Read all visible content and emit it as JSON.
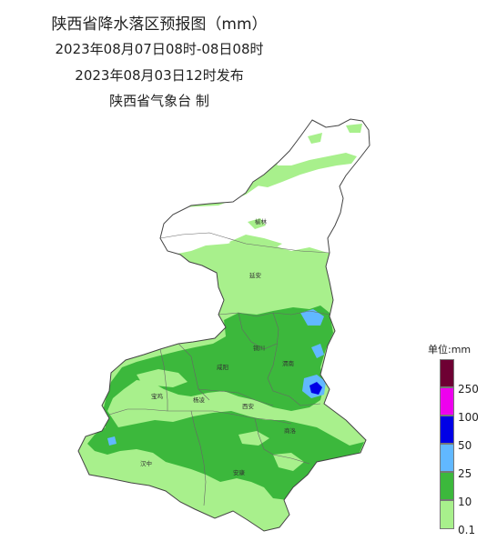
{
  "title": {
    "line1": "陕西省降水落区预报图（mm）",
    "line2": "2023年08月07日08时-08日08时",
    "line3": "2023年08月03日12时发布",
    "line4": "陕西省气象台 制"
  },
  "cities": {
    "yulin": "榆林",
    "yanan": "延安",
    "tongchuan": "铜川",
    "weinan": "渭南",
    "xianyang": "咸阳",
    "baoji": "宝鸡",
    "yangling": "杨凌",
    "xian": "西安",
    "shangluo": "商洛",
    "hanzhong": "汉中",
    "ankang": "安康"
  },
  "legend": {
    "title": "单位:mm",
    "ticks": [
      "250",
      "100",
      "50",
      "25",
      "10",
      "0.1"
    ],
    "colors": {
      "c250": "#6e0033",
      "c100": "#ee00ee",
      "c50": "#0000e6",
      "c25": "#61b8ff",
      "c10": "#3cb83c",
      "c01": "#a8f08c"
    }
  }
}
